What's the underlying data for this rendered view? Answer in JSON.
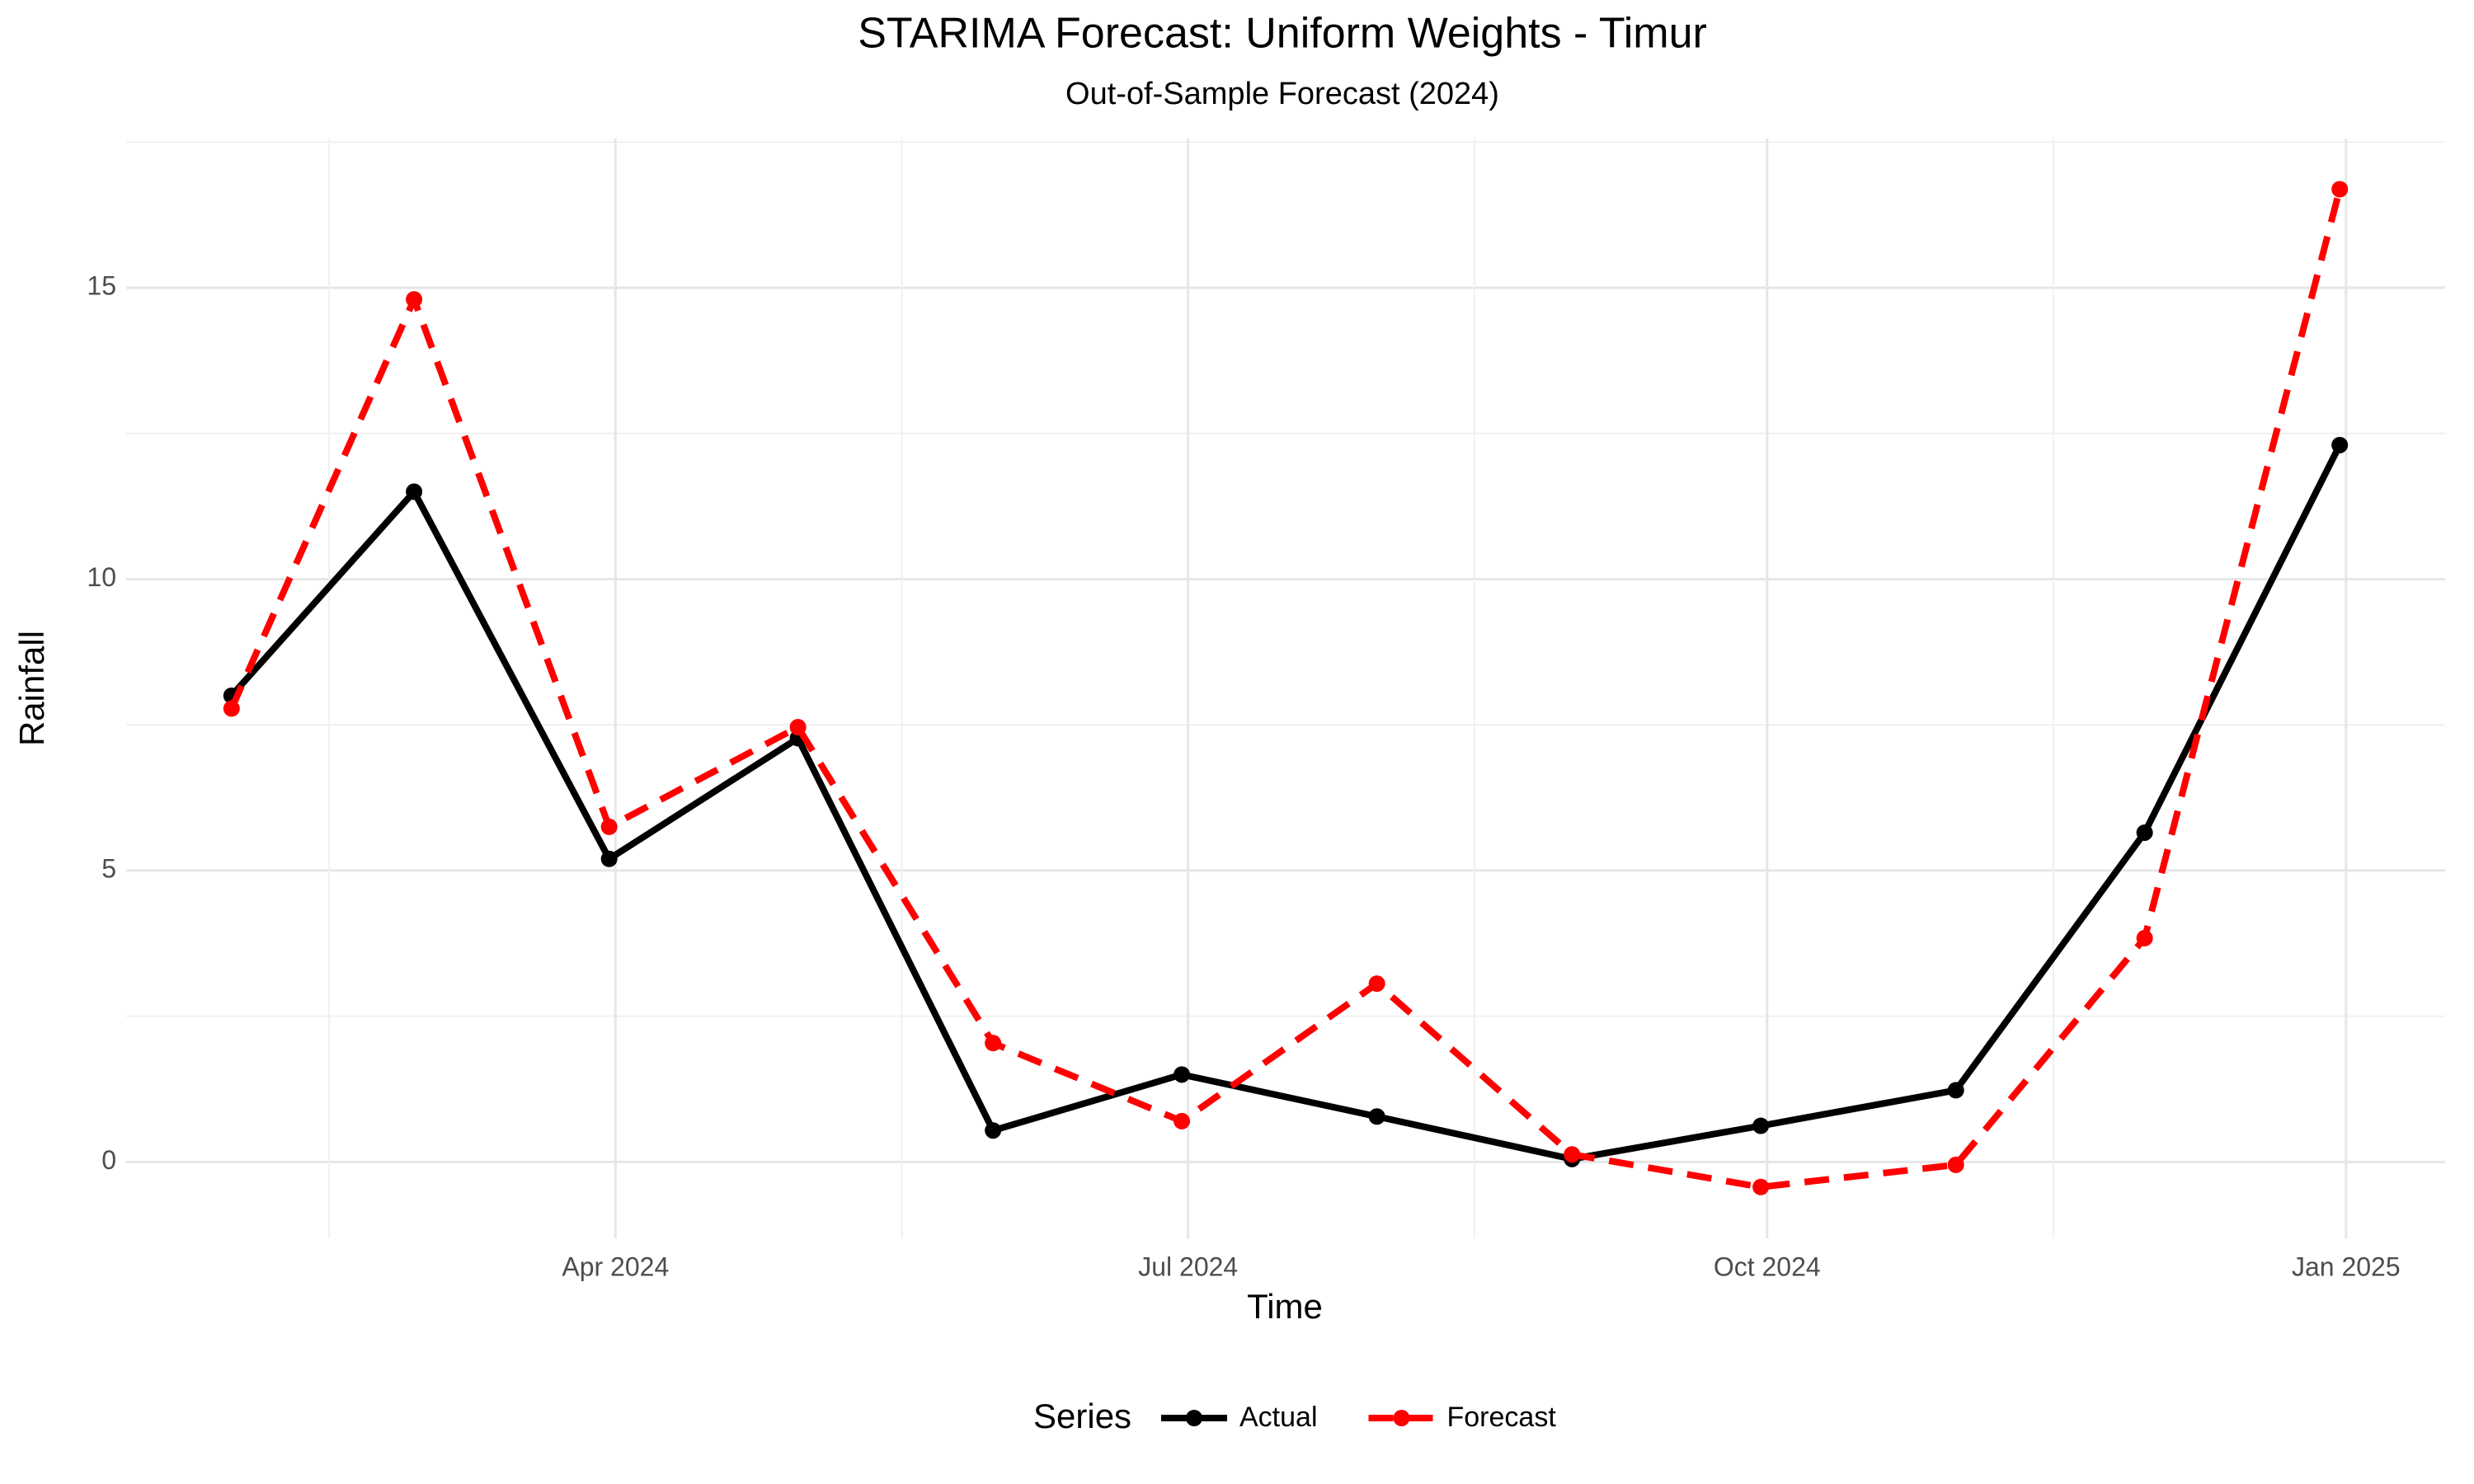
{
  "chart_data": {
    "type": "line",
    "title": "STARIMA Forecast: Uniform Weights - Timur",
    "subtitle": "Out-of-Sample Forecast (2024)",
    "x_label": "Time",
    "y_label": "Rainfall",
    "legend_title": "Series",
    "legend_position": "bottom",
    "x": [
      "2024-01",
      "2024-02",
      "2024-03",
      "2024-04",
      "2024-05",
      "2024-06",
      "2024-07",
      "2024-08",
      "2024-09",
      "2024-10",
      "2024-11",
      "2024-12"
    ],
    "series": [
      {
        "name": "Actual",
        "color": "#000000",
        "linetype": "solid",
        "values": [
          8.0,
          11.5,
          5.2,
          7.27,
          0.54,
          1.5,
          0.78,
          0.05,
          0.62,
          1.23,
          5.65,
          12.3
        ]
      },
      {
        "name": "Forecast",
        "color": "#ff0000",
        "linetype": "dashed",
        "values": [
          7.78,
          14.8,
          5.75,
          7.46,
          2.04,
          0.7,
          3.06,
          0.13,
          -0.43,
          -0.05,
          3.84,
          16.69
        ]
      }
    ],
    "xticks": [
      {
        "value": "2024-04",
        "label": "Apr 2024"
      },
      {
        "value": "2024-07",
        "label": "Jul 2024"
      },
      {
        "value": "2024-10",
        "label": "Oct 2024"
      },
      {
        "value": "2025-01",
        "label": "Jan 2025"
      }
    ],
    "ylim": [
      -1.31,
      17.56
    ],
    "yticks": [
      0,
      5,
      10,
      15
    ],
    "grid": true
  }
}
